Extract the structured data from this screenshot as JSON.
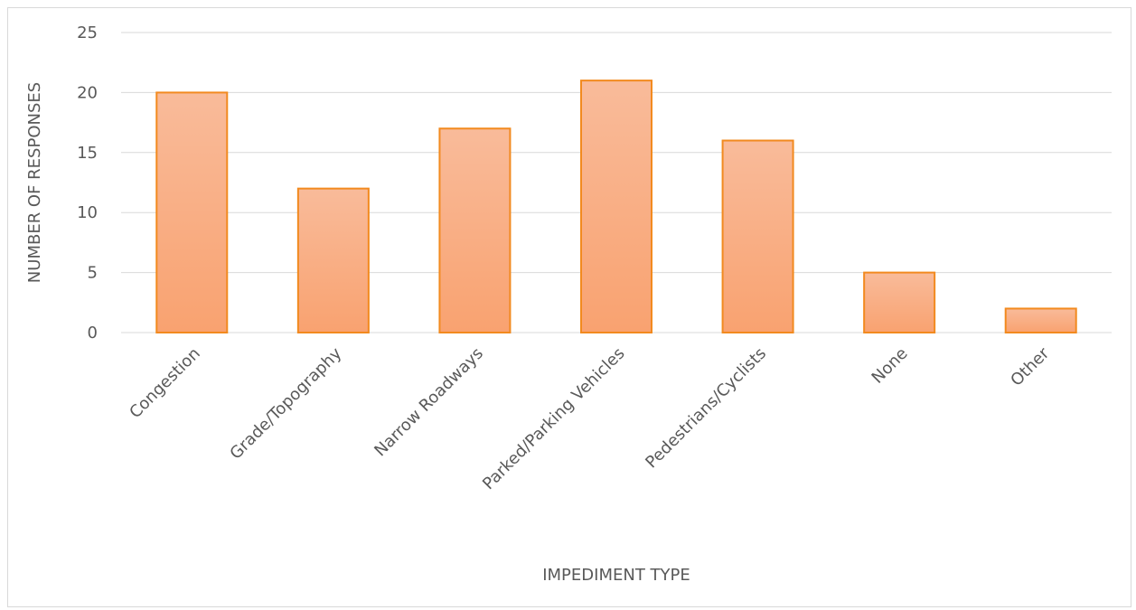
{
  "chart_data": {
    "type": "bar",
    "title": "",
    "xlabel": "IMPEDIMENT TYPE",
    "ylabel": "NUMBER OF RESPONSES",
    "categories": [
      "Congestion",
      "Grade/Topography",
      "Narrow Roadways",
      "Parked/Parking Vehicles",
      "Pedestrians/Cyclists",
      "None",
      "Other"
    ],
    "values": [
      20,
      12,
      17,
      21,
      16,
      5,
      2
    ],
    "ylim": [
      0,
      25
    ],
    "yticks": [
      0,
      5,
      10,
      15,
      20,
      25
    ],
    "grid": true,
    "legend": "none",
    "colors": {
      "bar_top": "#f9bb9a",
      "bar_bottom": "#f9a270",
      "bar_border": "#f28a1f",
      "gridline": "#d9d9d9",
      "text": "#595959"
    }
  }
}
